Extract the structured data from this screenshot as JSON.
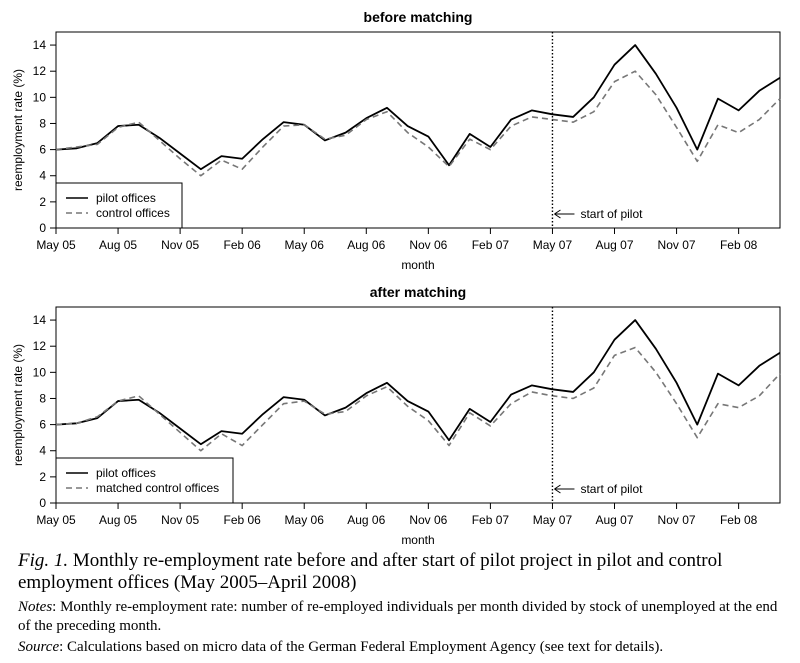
{
  "chart_data": [
    {
      "type": "line",
      "title": "before matching",
      "xlabel": "month",
      "ylabel": "reemployment rate (%)",
      "ylim": [
        0,
        15
      ],
      "yticks": [
        0,
        2,
        4,
        6,
        8,
        10,
        12,
        14
      ],
      "xticks": [
        "May 05",
        "Aug 05",
        "Nov 05",
        "Feb 06",
        "May 06",
        "Aug 06",
        "Nov 06",
        "Feb 07",
        "May 07",
        "Aug 07",
        "Nov 07",
        "Feb 08"
      ],
      "x": [
        "May 05",
        "Jun 05",
        "Jul 05",
        "Aug 05",
        "Sep 05",
        "Oct 05",
        "Nov 05",
        "Dec 05",
        "Jan 06",
        "Feb 06",
        "Mar 06",
        "Apr 06",
        "May 06",
        "Jun 06",
        "Jul 06",
        "Aug 06",
        "Sep 06",
        "Oct 06",
        "Nov 06",
        "Dec 06",
        "Jan 07",
        "Feb 07",
        "Mar 07",
        "Apr 07",
        "May 07",
        "Jun 07",
        "Jul 07",
        "Aug 07",
        "Sep 07",
        "Oct 07",
        "Nov 07",
        "Dec 07",
        "Jan 08",
        "Feb 08",
        "Mar 08",
        "Apr 08"
      ],
      "series": [
        {
          "name": "pilot offices",
          "style": "solid",
          "color": "#000000",
          "values": [
            6.0,
            6.1,
            6.5,
            7.8,
            7.9,
            6.9,
            5.7,
            4.5,
            5.5,
            5.3,
            6.8,
            8.1,
            7.9,
            6.7,
            7.3,
            8.4,
            9.2,
            7.8,
            7.0,
            4.8,
            7.2,
            6.2,
            8.3,
            9.0,
            8.7,
            8.5,
            10.0,
            12.5,
            14.0,
            11.8,
            9.2,
            6.0,
            9.9,
            9.0,
            10.5,
            11.5
          ]
        },
        {
          "name": "control offices",
          "style": "dashed",
          "color": "#777777",
          "values": [
            6.0,
            6.2,
            6.4,
            7.7,
            8.1,
            6.7,
            5.3,
            4.0,
            5.2,
            4.5,
            6.2,
            7.8,
            7.9,
            6.8,
            7.1,
            8.3,
            8.9,
            7.3,
            6.2,
            4.7,
            6.8,
            6.0,
            7.8,
            8.5,
            8.3,
            8.1,
            8.9,
            11.2,
            12.0,
            10.2,
            7.7,
            5.1,
            7.9,
            7.3,
            8.3,
            9.9
          ]
        }
      ],
      "vline": {
        "x": "May 07",
        "label": "start of pilot"
      },
      "legend_position": "bottom-left"
    },
    {
      "type": "line",
      "title": "after matching",
      "xlabel": "month",
      "ylabel": "reemployment rate (%)",
      "ylim": [
        0,
        15
      ],
      "yticks": [
        0,
        2,
        4,
        6,
        8,
        10,
        12,
        14
      ],
      "xticks": [
        "May 05",
        "Aug 05",
        "Nov 05",
        "Feb 06",
        "May 06",
        "Aug 06",
        "Nov 06",
        "Feb 07",
        "May 07",
        "Aug 07",
        "Nov 07",
        "Feb 08"
      ],
      "x": [
        "May 05",
        "Jun 05",
        "Jul 05",
        "Aug 05",
        "Sep 05",
        "Oct 05",
        "Nov 05",
        "Dec 05",
        "Jan 06",
        "Feb 06",
        "Mar 06",
        "Apr 06",
        "May 06",
        "Jun 06",
        "Jul 06",
        "Aug 06",
        "Sep 06",
        "Oct 06",
        "Nov 06",
        "Dec 06",
        "Jan 07",
        "Feb 07",
        "Mar 07",
        "Apr 07",
        "May 07",
        "Jun 07",
        "Jul 07",
        "Aug 07",
        "Sep 07",
        "Oct 07",
        "Nov 07",
        "Dec 07",
        "Jan 08",
        "Feb 08",
        "Mar 08",
        "Apr 08"
      ],
      "series": [
        {
          "name": "pilot offices",
          "style": "solid",
          "color": "#000000",
          "values": [
            6.0,
            6.1,
            6.5,
            7.8,
            7.9,
            6.9,
            5.7,
            4.5,
            5.5,
            5.3,
            6.8,
            8.1,
            7.9,
            6.7,
            7.3,
            8.4,
            9.2,
            7.8,
            7.0,
            4.8,
            7.2,
            6.2,
            8.3,
            9.0,
            8.7,
            8.5,
            10.0,
            12.5,
            14.0,
            11.8,
            9.2,
            6.0,
            9.9,
            9.0,
            10.5,
            11.5
          ]
        },
        {
          "name": "matched control offices",
          "style": "dashed",
          "color": "#777777",
          "values": [
            6.0,
            6.1,
            6.6,
            7.8,
            8.2,
            6.8,
            5.4,
            4.0,
            5.3,
            4.4,
            6.0,
            7.6,
            7.8,
            6.8,
            7.0,
            8.2,
            8.9,
            7.4,
            6.3,
            4.4,
            6.9,
            5.9,
            7.6,
            8.5,
            8.2,
            8.0,
            8.8,
            11.3,
            11.9,
            10.0,
            7.6,
            5.0,
            7.6,
            7.3,
            8.2,
            9.9
          ]
        }
      ],
      "vline": {
        "x": "May 07",
        "label": "start of pilot"
      },
      "legend_position": "bottom-left"
    }
  ],
  "caption": {
    "fig_label": "Fig. 1.",
    "main": " Monthly re-employment rate before and after start of pilot project in pilot and control employment offices (May 2005–April 2008)",
    "notes_label": "Notes",
    "notes": ": Monthly re-employment rate: number of re-employed individuals per month divided by stock of unemployed at the end of the preceding month.",
    "source_label": "Source",
    "source": ": Calculations based on micro data of the German Federal Employment Agency (see text for details)."
  }
}
